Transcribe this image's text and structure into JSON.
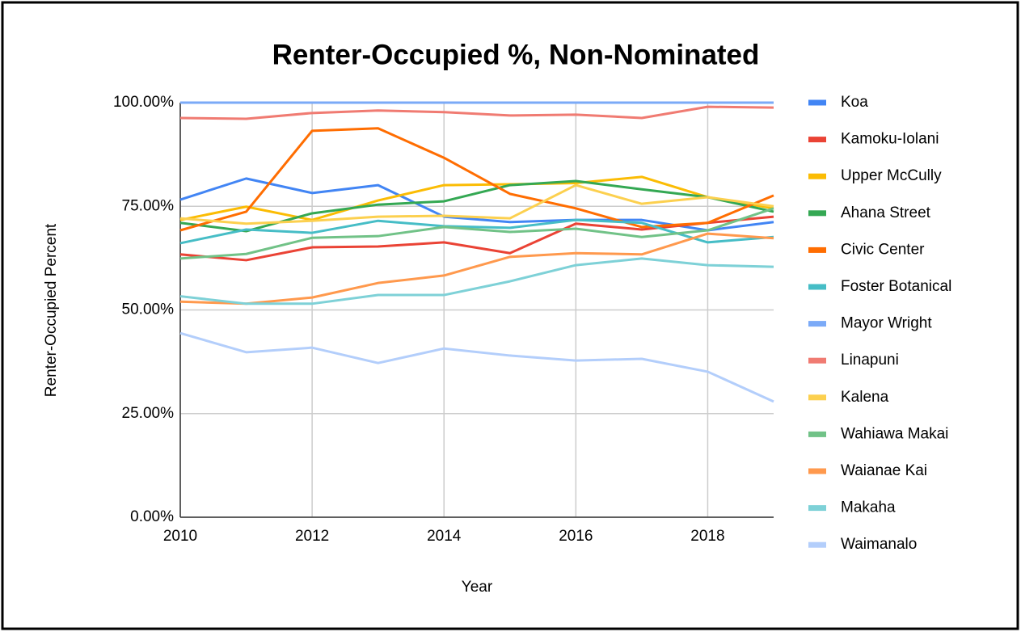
{
  "chart_data": {
    "type": "line",
    "title": "Renter-Occupied %, Non-Nominated",
    "x_label": "Year",
    "y_label": "Renter-Occupied Percent",
    "x": [
      2010,
      2011,
      2012,
      2013,
      2014,
      2015,
      2016,
      2017,
      2018,
      2019
    ],
    "xlim": [
      2010,
      2019
    ],
    "xticks": [
      2010,
      2012,
      2014,
      2016,
      2018
    ],
    "ylim": [
      0,
      100
    ],
    "yticks": [
      {
        "value": 0,
        "label": "0.00%"
      },
      {
        "value": 25,
        "label": "25.00%"
      },
      {
        "value": 50,
        "label": "50.00%"
      },
      {
        "value": 75,
        "label": "75.00%"
      },
      {
        "value": 100,
        "label": "100.00%"
      }
    ],
    "grid": true,
    "legend": "right",
    "series": [
      {
        "name": "Koa",
        "color": "#4285f4",
        "values": [
          76.6,
          81.7,
          78.2,
          80.1,
          72.5,
          71.2,
          71.7,
          71.7,
          69.2,
          71.2
        ]
      },
      {
        "name": "Kamoku-Iolani",
        "color": "#ea4335",
        "values": [
          63.4,
          62.0,
          65.1,
          65.3,
          66.3,
          63.7,
          70.8,
          69.4,
          71.0,
          72.5
        ]
      },
      {
        "name": "Upper McCully",
        "color": "#fbbc04",
        "values": [
          71.7,
          74.9,
          71.7,
          76.4,
          80.1,
          80.3,
          80.6,
          82.1,
          77.2,
          74.5
        ]
      },
      {
        "name": "Ahana Street",
        "color": "#34a853",
        "values": [
          71.0,
          69.0,
          73.3,
          75.4,
          76.2,
          80.1,
          81.1,
          79.1,
          77.2,
          73.7
        ]
      },
      {
        "name": "Civic Center",
        "color": "#ff6d01",
        "values": [
          69.2,
          73.7,
          93.2,
          93.8,
          86.7,
          78.0,
          74.5,
          70.0,
          71.0,
          77.6
        ]
      },
      {
        "name": "Foster Botanical",
        "color": "#46bdc6",
        "values": [
          66.1,
          69.4,
          68.6,
          71.5,
          70.2,
          69.8,
          71.7,
          71.0,
          66.3,
          67.6
        ]
      },
      {
        "name": "Mayor Wright",
        "color": "#7baaf7",
        "values": [
          100,
          100,
          100,
          100,
          100,
          100,
          100,
          100,
          100,
          100
        ]
      },
      {
        "name": "Linapuni",
        "color": "#f07b72",
        "values": [
          96.3,
          96.1,
          97.5,
          98.1,
          97.7,
          96.9,
          97.1,
          96.3,
          99.0,
          98.8
        ]
      },
      {
        "name": "Kalena",
        "color": "#fcd04f",
        "values": [
          72.1,
          70.8,
          71.5,
          72.5,
          72.7,
          72.1,
          80.1,
          75.6,
          77.2,
          75.0
        ]
      },
      {
        "name": "Wahiawa Makai",
        "color": "#71c287",
        "values": [
          62.4,
          63.5,
          67.4,
          67.8,
          70.0,
          68.8,
          69.6,
          67.6,
          69.2,
          74.5
        ]
      },
      {
        "name": "Waianae Kai",
        "color": "#ff994d",
        "values": [
          52.0,
          51.5,
          53.0,
          56.5,
          58.3,
          62.8,
          63.7,
          63.4,
          68.4,
          67.3
        ]
      },
      {
        "name": "Makaha",
        "color": "#7ed1d7",
        "values": [
          53.3,
          51.5,
          51.5,
          53.6,
          53.6,
          56.9,
          60.8,
          62.4,
          60.8,
          60.4
        ]
      },
      {
        "name": "Waimanalo",
        "color": "#b3cefb",
        "values": [
          44.4,
          39.8,
          40.9,
          37.2,
          40.7,
          39.0,
          37.8,
          38.2,
          35.1,
          27.9
        ]
      }
    ]
  }
}
